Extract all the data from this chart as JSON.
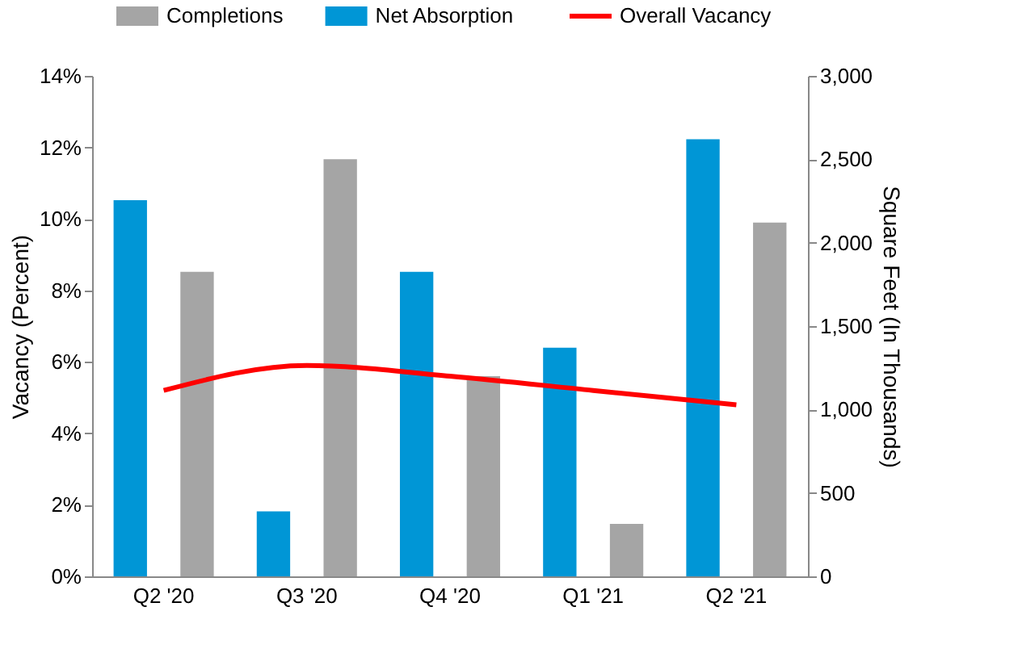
{
  "chart_data": {
    "type": "bar",
    "categories": [
      "Q2 '20",
      "Q3 '20",
      "Q4 '20",
      "Q1 '21",
      "Q2 '21"
    ],
    "series": [
      {
        "name": "Completions",
        "color": "#a5a5a5",
        "axis": "y2",
        "values": [
          1825,
          2500,
          1200,
          315,
          2120
        ]
      },
      {
        "name": "Net Absorption",
        "color": "#0096d6",
        "axis": "y2",
        "values": [
          2255,
          390,
          1825,
          1370,
          2620
        ]
      },
      {
        "name": "Overall Vacancy",
        "color": "#ff0000",
        "type": "line",
        "values": [
          5.2,
          5.9,
          5.6,
          5.2,
          4.8
        ]
      }
    ],
    "ylabel": "Vacancy (Percent)",
    "y2label": "Square Feet (In Thousands)",
    "ylim": [
      0,
      14
    ],
    "yticks": [
      {
        "value": 0,
        "label": "0%"
      },
      {
        "value": 2,
        "label": "2%"
      },
      {
        "value": 4,
        "label": "4%"
      },
      {
        "value": 6,
        "label": "6%"
      },
      {
        "value": 8,
        "label": "8%"
      },
      {
        "value": 10,
        "label": "10%"
      },
      {
        "value": 12,
        "label": "12%"
      },
      {
        "value": 14,
        "label": "14%"
      }
    ],
    "y2lim": [
      0,
      3000
    ],
    "y2ticks": [
      {
        "value": 0,
        "label": "0"
      },
      {
        "value": 500,
        "label": "500"
      },
      {
        "value": 1000,
        "label": "1,000"
      },
      {
        "value": 1500,
        "label": "1,500"
      },
      {
        "value": 2000,
        "label": "2,000"
      },
      {
        "value": 2500,
        "label": "2,500"
      },
      {
        "value": 3000,
        "label": "3,000"
      }
    ],
    "grid": false,
    "legend": "top",
    "marker": "none",
    "line_style": "solid"
  }
}
